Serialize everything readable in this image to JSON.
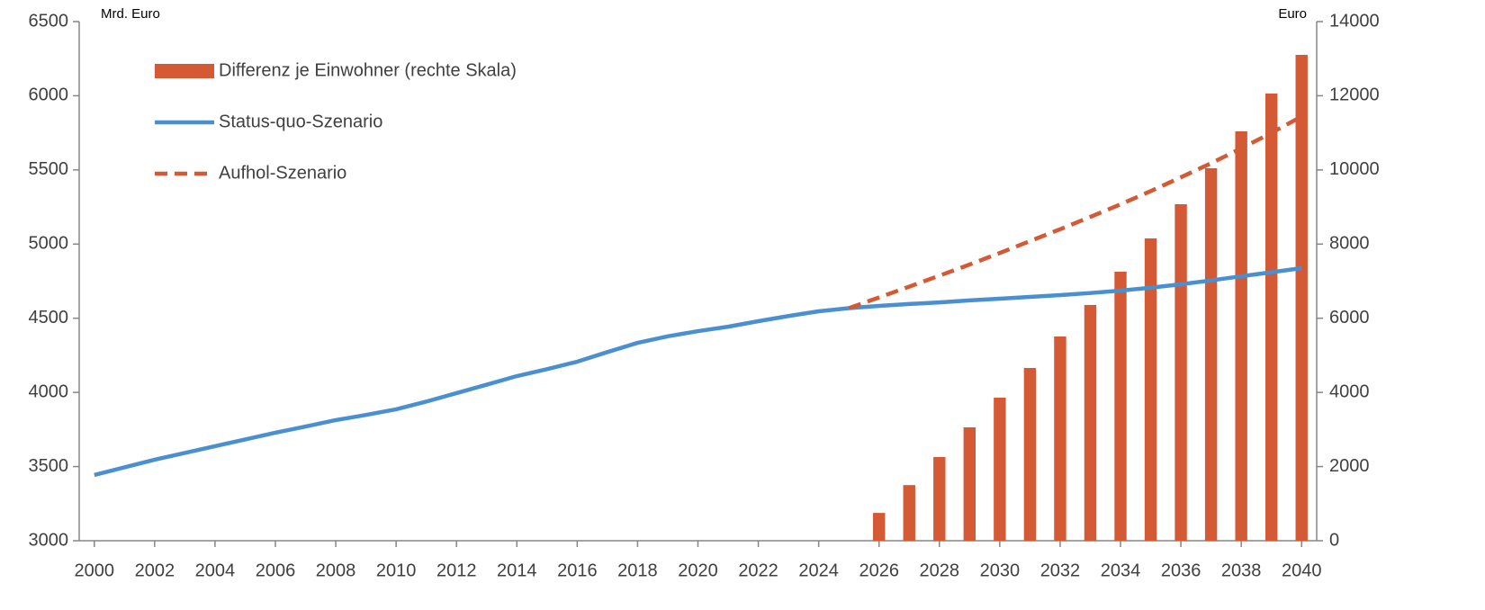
{
  "chart_data": {
    "type": "bar-line",
    "y_label": "Mrd. Euro",
    "y2_label": "Euro",
    "x": [
      2000,
      2001,
      2002,
      2003,
      2004,
      2005,
      2006,
      2007,
      2008,
      2009,
      2010,
      2011,
      2012,
      2013,
      2014,
      2015,
      2016,
      2017,
      2018,
      2019,
      2020,
      2021,
      2022,
      2023,
      2024,
      2025,
      2026,
      2027,
      2028,
      2029,
      2030,
      2031,
      2032,
      2033,
      2034,
      2035,
      2036,
      2037,
      2038,
      2039,
      2040
    ],
    "xlim": [
      1999.5,
      2040.5
    ],
    "xticks": [
      2000,
      2002,
      2004,
      2006,
      2008,
      2010,
      2012,
      2014,
      2016,
      2018,
      2020,
      2022,
      2024,
      2026,
      2028,
      2030,
      2032,
      2034,
      2036,
      2038,
      2040
    ],
    "ylim": [
      3000,
      6500
    ],
    "yticks": [
      3000,
      3500,
      4000,
      4500,
      5000,
      5500,
      6000,
      6500
    ],
    "y2lim": [
      0,
      14000
    ],
    "y2ticks": [
      0,
      2000,
      4000,
      6000,
      8000,
      10000,
      12000,
      14000
    ],
    "grid": false,
    "legend": "top-left",
    "series": [
      {
        "name": "Differenz je Einwohner (rechte Skala)",
        "type": "bar",
        "axis": "y2",
        "color": "#d35a35",
        "values": [
          null,
          null,
          null,
          null,
          null,
          null,
          null,
          null,
          null,
          null,
          null,
          null,
          null,
          null,
          null,
          null,
          null,
          null,
          null,
          null,
          null,
          null,
          null,
          null,
          null,
          null,
          750,
          1500,
          2257,
          3057,
          3858,
          4659,
          5508,
          6358,
          7255,
          8153,
          9075,
          10046,
          11041,
          12060,
          13103
        ]
      },
      {
        "name": "Status-quo-Szenario",
        "type": "line",
        "axis": "y",
        "color": "#4a90d0",
        "dash": false,
        "values": [
          3443,
          3495,
          3546,
          3592,
          3637,
          3683,
          3728,
          3770,
          3813,
          3848,
          3886,
          3938,
          3995,
          4052,
          4110,
          4157,
          4207,
          4272,
          4334,
          4378,
          4413,
          4443,
          4480,
          4515,
          4547,
          4568,
          4583,
          4596,
          4607,
          4620,
          4632,
          4644,
          4656,
          4670,
          4686,
          4706,
          4729,
          4755,
          4783,
          4810,
          4838
        ]
      },
      {
        "name": "Aufhol-Szenario",
        "type": "line",
        "axis": "y",
        "color": "#d35a35",
        "dash": true,
        "values": [
          null,
          null,
          null,
          null,
          null,
          null,
          null,
          null,
          null,
          null,
          null,
          null,
          null,
          null,
          null,
          null,
          null,
          null,
          null,
          null,
          null,
          null,
          null,
          null,
          null,
          4568,
          4640,
          4713,
          4787,
          4862,
          4940,
          5020,
          5100,
          5183,
          5268,
          5357,
          5450,
          5545,
          5645,
          5750,
          5860
        ]
      }
    ]
  }
}
